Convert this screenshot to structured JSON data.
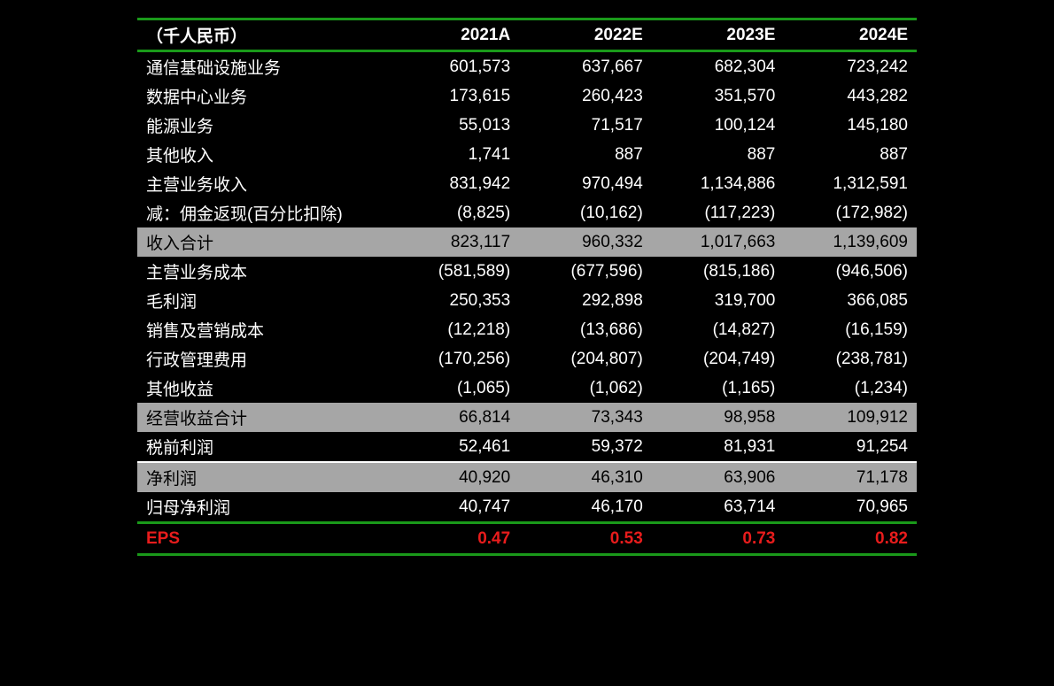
{
  "table": {
    "background_color": "#000000",
    "text_color": "#ffffff",
    "shade_bg": "#a6a6a6",
    "shade_text": "#000000",
    "rule_color": "#1a9a1a",
    "divider_color": "#ffffff",
    "eps_color": "#e81c1c",
    "font_size": 19,
    "columns": [
      "（千人民币）",
      "2021A",
      "2022E",
      "2023E",
      "2024E"
    ],
    "rows": [
      {
        "label": "通信基础设施业务",
        "vals": [
          "601,573",
          "637,667",
          "682,304",
          "723,242"
        ],
        "shade": false
      },
      {
        "label": "数据中心业务",
        "vals": [
          "173,615",
          "260,423",
          "351,570",
          "443,282"
        ],
        "shade": false
      },
      {
        "label": "能源业务",
        "vals": [
          "55,013",
          "71,517",
          "100,124",
          "145,180"
        ],
        "shade": false
      },
      {
        "label": "其他收入",
        "vals": [
          "1,741",
          "887",
          "887",
          "887"
        ],
        "shade": false
      },
      {
        "label": "主营业务收入",
        "vals": [
          "831,942",
          "970,494",
          "1,134,886",
          "1,312,591"
        ],
        "shade": false
      },
      {
        "label": "减：佣金返现(百分比扣除)",
        "vals": [
          "(8,825)",
          "(10,162)",
          "(117,223)",
          "(172,982)"
        ],
        "shade": false
      },
      {
        "label": "收入合计",
        "vals": [
          "823,117",
          "960,332",
          "1,017,663",
          "1,139,609"
        ],
        "shade": true
      },
      {
        "label": "主营业务成本",
        "vals": [
          "(581,589)",
          "(677,596)",
          "(815,186)",
          "(946,506)"
        ],
        "shade": false
      },
      {
        "label": "毛利润",
        "vals": [
          "250,353",
          "292,898",
          "319,700",
          "366,085"
        ],
        "shade": false
      },
      {
        "label": "销售及营销成本",
        "vals": [
          "(12,218)",
          "(13,686)",
          "(14,827)",
          "(16,159)"
        ],
        "shade": false
      },
      {
        "label": "行政管理费用",
        "vals": [
          "(170,256)",
          "(204,807)",
          "(204,749)",
          "(238,781)"
        ],
        "shade": false
      },
      {
        "label": "其他收益",
        "vals": [
          "(1,065)",
          "(1,062)",
          "(1,165)",
          "(1,234)"
        ],
        "shade": false
      },
      {
        "label": "经营收益合计",
        "vals": [
          "66,814",
          "73,343",
          "98,958",
          "109,912"
        ],
        "shade": true
      },
      {
        "label": "税前利润",
        "vals": [
          "52,461",
          "59,372",
          "81,931",
          "91,254"
        ],
        "shade": false
      },
      {
        "label": "净利润",
        "vals": [
          "40,920",
          "46,310",
          "63,906",
          "71,178"
        ],
        "shade": true,
        "divider_above": true
      },
      {
        "label": "归母净利润",
        "vals": [
          "40,747",
          "46,170",
          "63,714",
          "70,965"
        ],
        "shade": false
      }
    ],
    "eps": {
      "label": "EPS",
      "vals": [
        "0.47",
        "0.53",
        "0.73",
        "0.82"
      ]
    }
  }
}
